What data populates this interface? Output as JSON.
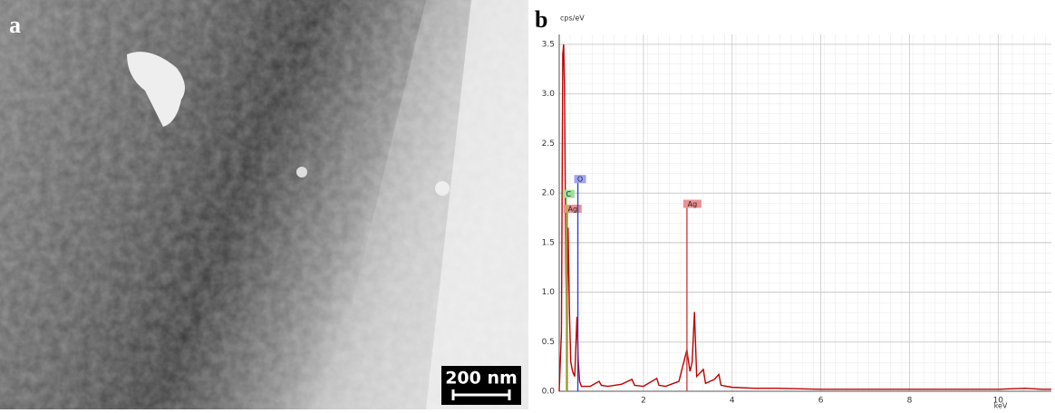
{
  "panel_a": {
    "label": "a",
    "scale_bar": "200 nm"
  },
  "chart_data": {
    "type": "line",
    "panel_label": "b",
    "y_label": "cps/eV",
    "x_label": "keV",
    "x": [
      0.1,
      0.15,
      0.18,
      0.2,
      0.22,
      0.25,
      0.27,
      0.3,
      0.33,
      0.36,
      0.4,
      0.45,
      0.5,
      0.53,
      0.56,
      0.6,
      0.8,
      1.0,
      1.05,
      1.2,
      1.5,
      1.74,
      1.8,
      2.0,
      2.3,
      2.35,
      2.5,
      2.8,
      2.98,
      3.0,
      3.05,
      3.1,
      3.15,
      3.2,
      3.35,
      3.4,
      3.6,
      3.7,
      3.75,
      4.0,
      4.5,
      5,
      6,
      7,
      8,
      9,
      10,
      10.6,
      11,
      11.2
    ],
    "values": [
      0,
      0.6,
      3.4,
      3.5,
      3.05,
      1.2,
      0.6,
      1.65,
      0.8,
      0.3,
      0.2,
      0.15,
      0.75,
      0.3,
      0.1,
      0.05,
      0.05,
      0.1,
      0.06,
      0.05,
      0.07,
      0.12,
      0.06,
      0.05,
      0.13,
      0.06,
      0.05,
      0.1,
      0.42,
      0.35,
      0.2,
      0.3,
      0.8,
      0.15,
      0.22,
      0.08,
      0.12,
      0.17,
      0.06,
      0.04,
      0.03,
      0.03,
      0.02,
      0.02,
      0.02,
      0.02,
      0.02,
      0.03,
      0.02,
      0.02
    ],
    "color": "#c00000",
    "xlim": [
      0.1,
      11.2
    ],
    "ylim": [
      0,
      3.6
    ],
    "xticks": [
      2,
      4,
      6,
      8,
      10
    ],
    "yticks": [
      {
        "value": 0,
        "label": "0.0"
      },
      0.5,
      {
        "value": 1,
        "label": "1.0"
      },
      1.5,
      {
        "value": 2,
        "label": "2.0"
      },
      2.5,
      {
        "value": 3,
        "label": "3.0"
      },
      3.5
    ],
    "grid": true,
    "peak_markers": [
      {
        "label": "Ag",
        "energy": 0.28,
        "height": 1.8,
        "color": "#d04040",
        "box": "#ee9090"
      },
      {
        "label": "C",
        "energy": 0.26,
        "height": 1.95,
        "color": "#8cc63f",
        "box": "#9be09b"
      },
      {
        "label": "O",
        "energy": 0.52,
        "height": 2.1,
        "color": "#3040d0",
        "box": "#9ea4f4"
      },
      {
        "label": "Ag",
        "energy": 2.98,
        "height": 1.85,
        "color": "#d04040",
        "box": "#ee9090"
      }
    ]
  }
}
